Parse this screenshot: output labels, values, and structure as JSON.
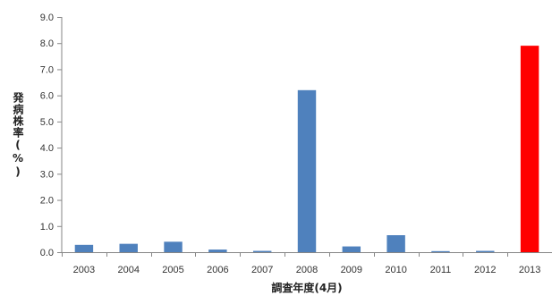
{
  "chart_data": {
    "type": "bar",
    "title": "",
    "xlabel": "調査年度(4月)",
    "ylabel": "発病株率(%)",
    "ylim": [
      0,
      9
    ],
    "y_tick_step": 1,
    "y_tick_decimals": 1,
    "grid": false,
    "categories": [
      "2003",
      "2004",
      "2005",
      "2006",
      "2007",
      "2008",
      "2009",
      "2010",
      "2011",
      "2012",
      "2013"
    ],
    "values": [
      0.28,
      0.32,
      0.4,
      0.1,
      0.05,
      6.2,
      0.22,
      0.65,
      0.04,
      0.05,
      7.9
    ],
    "colors": {
      "default": "#4f81bd",
      "highlight": "#ff0000",
      "axis": "#868686"
    },
    "highlight_categories": [
      "2013"
    ]
  }
}
